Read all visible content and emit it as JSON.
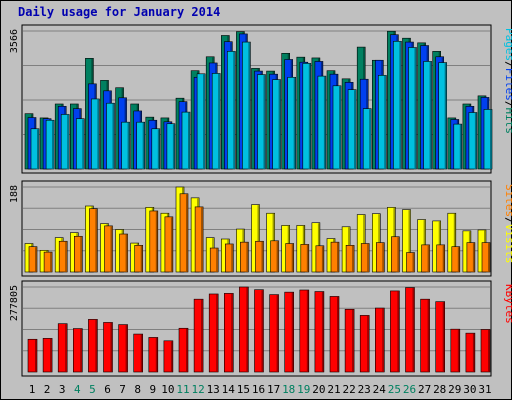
{
  "chart_data": {
    "type": "bar",
    "title": "Daily usage for January 2014",
    "categories": [
      "1",
      "2",
      "3",
      "4",
      "5",
      "6",
      "7",
      "8",
      "9",
      "10",
      "11",
      "12",
      "13",
      "14",
      "15",
      "16",
      "17",
      "18",
      "19",
      "20",
      "21",
      "22",
      "23",
      "24",
      "25",
      "26",
      "27",
      "28",
      "29",
      "30",
      "31"
    ],
    "weekend_days": [
      4,
      5,
      11,
      12,
      18,
      19,
      25,
      26
    ],
    "panels": [
      {
        "id": "hits",
        "ymax_label": "3566",
        "ymax": 3566,
        "legend": [
          "Pages",
          "/",
          "Files",
          "/",
          "Hits"
        ],
        "legend_colors": [
          "#00c0e0",
          "#000000",
          "#0040f0",
          "#000000",
          "#008060"
        ],
        "series": [
          {
            "name": "Hits",
            "color": "#008060",
            "values": [
              1430,
              1320,
              1680,
              1680,
              2860,
              2290,
              2100,
              1680,
              1340,
              1320,
              1830,
              2540,
              2900,
              3450,
              3550,
              2600,
              2530,
              2990,
              2890,
              2870,
              2540,
              2330,
              3150,
              2810,
              3560,
              3380,
              3260,
              3040,
              1320,
              1680,
              1890
            ]
          },
          {
            "name": "Files",
            "color": "#0040f0",
            "values": [
              1330,
              1300,
              1620,
              1560,
              2200,
              2020,
              1840,
              1500,
              1260,
              1220,
              1740,
              2370,
              2740,
              3290,
              3490,
              2530,
              2450,
              2830,
              2760,
              2780,
              2450,
              2240,
              2320,
              2810,
              3470,
              3280,
              3190,
              2900,
              1280,
              1620,
              1850
            ]
          },
          {
            "name": "Pages",
            "color": "#00c0e0",
            "values": [
              1040,
              1260,
              1410,
              1300,
              1810,
              1700,
              1210,
              1210,
              1040,
              1170,
              1470,
              2460,
              2470,
              3040,
              3280,
              2440,
              2310,
              2370,
              2730,
              2400,
              2150,
              2050,
              1560,
              2420,
              3300,
              3140,
              2780,
              2750,
              1160,
              1460,
              1540
            ]
          }
        ]
      },
      {
        "id": "visits",
        "ymax_label": "188",
        "ymax": 188,
        "legend": [
          "Sites",
          "/",
          "Visits"
        ],
        "legend_colors": [
          "#ff8000",
          "#000000",
          "#ffff00"
        ],
        "series": [
          {
            "name": "Visits",
            "color": "#ffff00",
            "values": [
              63,
              48,
              76,
              87,
              146,
              107,
              94,
              64,
              143,
              130,
              188,
              164,
              76,
              73,
              95,
              149,
              130,
              103,
              103,
              109,
              74,
              100,
              127,
              129,
              143,
              138,
              116,
              113,
              130,
              91,
              93
            ]
          },
          {
            "name": "Sites",
            "color": "#ff8000",
            "values": [
              56,
              44,
              68,
              79,
              140,
              102,
              84,
              59,
              135,
              122,
              173,
              144,
              53,
              62,
              66,
              68,
              69,
              63,
              61,
              58,
              66,
              59,
              63,
              65,
              78,
              43,
              60,
              60,
              56,
              65,
              65
            ]
          }
        ]
      },
      {
        "id": "kbytes",
        "ymax_label": "277805",
        "ymax": 277805,
        "legend": [
          "KBytes"
        ],
        "legend_colors": [
          "#ff0000"
        ],
        "series": [
          {
            "name": "KBytes",
            "color": "#ff0000",
            "values": [
              107000,
              110000,
              158000,
              142000,
              172000,
              162000,
              155000,
              124000,
              113000,
              102000,
              143000,
              238000,
              255000,
              257000,
              277805,
              269000,
              253000,
              261000,
              268000,
              263000,
              247000,
              205000,
              185000,
              209000,
              265000,
              276000,
              238000,
              230000,
              140000,
              127000,
              139000
            ]
          }
        ]
      }
    ]
  }
}
